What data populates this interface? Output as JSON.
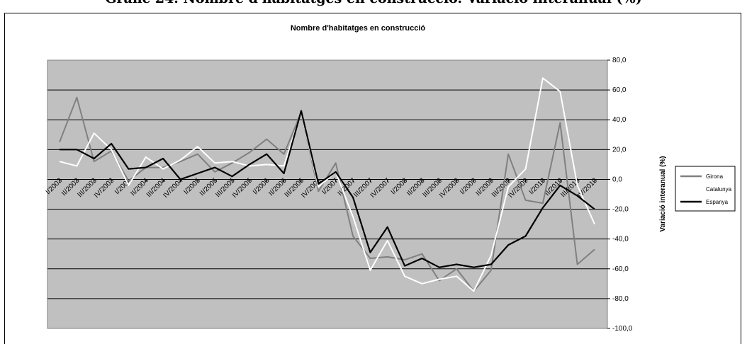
{
  "heading": "Gràfic 24. Nombre d'habitatges en construcció. Variació interanual (%)",
  "chart_data": {
    "type": "line",
    "title": "Nombre d'habitatges en construcció",
    "xlabel": "",
    "ylabel": "Variació interanual (%)",
    "ylim": [
      -100,
      80
    ],
    "yticks": [
      "80,0",
      "60,0",
      "40,0",
      "20,0",
      "0,0",
      "-20,0",
      "-40,0",
      "-60,0",
      "-80,0",
      "-100,0"
    ],
    "grid": true,
    "legend_position": "right",
    "categories": [
      "I/2003",
      "II/2003",
      "III/2003",
      "IV/2003",
      "I/2004",
      "II/2004",
      "III/2004",
      "IV/2004",
      "I/2005",
      "II/2005",
      "III/2005",
      "IV/2005",
      "I/2006",
      "II/2006",
      "III/2006",
      "IV/2006",
      "I/2007",
      "II/2007",
      "III/2007",
      "IV/2007",
      "I/2008",
      "II/2008",
      "III/2008",
      "IV/2008",
      "I/2009",
      "II/2009",
      "III/2009",
      "IV/2009",
      "I/2010",
      "II/2010",
      "III/2010",
      "IV/2010"
    ],
    "series": [
      {
        "name": "Girona",
        "color": "#808080",
        "values": [
          25,
          55,
          12,
          19,
          -1,
          8,
          8,
          12,
          17,
          5,
          11,
          18,
          27,
          17,
          45,
          -8,
          11,
          -38,
          -53,
          -52,
          -54,
          -50,
          -68,
          -60,
          -75,
          -61,
          17,
          -14,
          -16,
          38,
          -57,
          -47
        ]
      },
      {
        "name": "Catalunya",
        "color": "#ffffff",
        "values": [
          12,
          9,
          31,
          20,
          -4,
          15,
          7,
          13,
          22,
          11,
          12,
          9,
          10,
          9,
          45,
          -5,
          5,
          -25,
          -61,
          -41,
          -65,
          -70,
          -67,
          -65,
          -75,
          -51,
          -5,
          7,
          68,
          59,
          -4,
          -30
        ]
      },
      {
        "name": "Espanya",
        "color": "#000000",
        "values": [
          20,
          20,
          14,
          24,
          7,
          8,
          14,
          0,
          4,
          8,
          2,
          10,
          17,
          4,
          46,
          -3,
          5,
          -12,
          -49,
          -32,
          -58,
          -53,
          -59,
          -57,
          -59,
          -57,
          -44,
          -38,
          -19,
          -4,
          -11,
          -20
        ]
      }
    ]
  }
}
